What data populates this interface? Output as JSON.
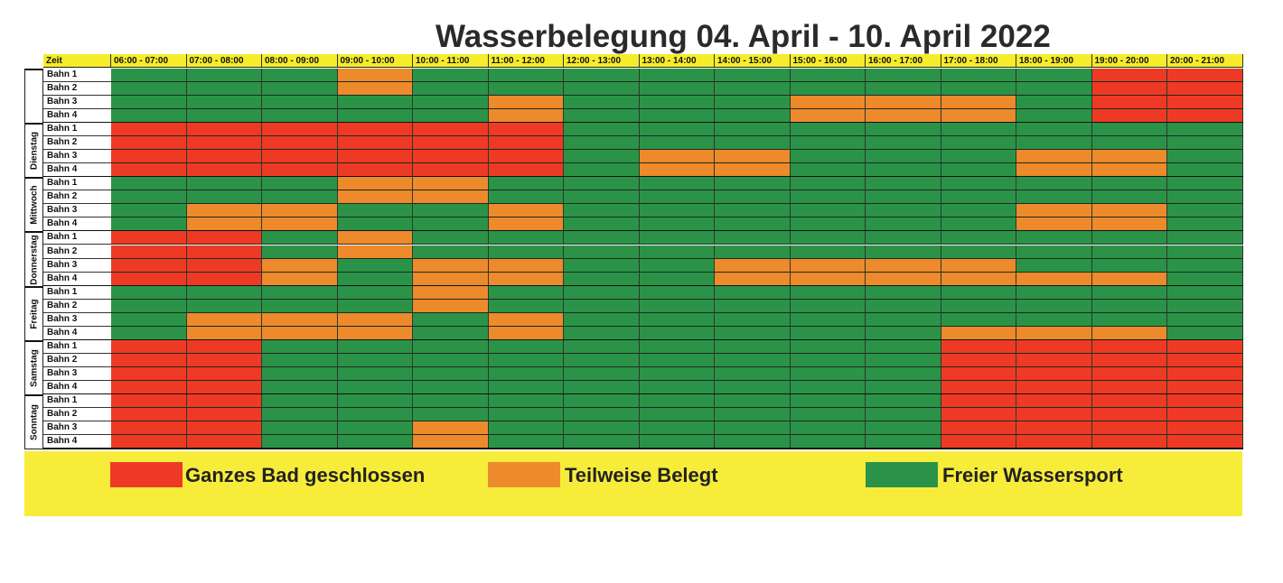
{
  "title": "Wasserbelegung 04. April - 10. April 2022",
  "header": {
    "corner_label": "Zeit",
    "time_slots": [
      "06:00 - 07:00",
      "07:00 - 08:00",
      "08:00 - 09:00",
      "09:00 - 10:00",
      "10:00 - 11:00",
      "11:00 - 12:00",
      "12:00 - 13:00",
      "13:00 - 14:00",
      "14:00 - 15:00",
      "15:00 - 16:00",
      "16:00 - 17:00",
      "17:00 - 18:00",
      "18:00 - 19:00",
      "19:00 - 20:00",
      "20:00 - 21:00"
    ]
  },
  "colors": {
    "R": "#ee3a24",
    "O": "#ec8a2c",
    "G": "#2b9348",
    "header_bg": "#f5ec2a",
    "legend_bg": "#f7ec3a"
  },
  "legend": [
    {
      "code": "R",
      "label": "Ganzes Bad geschlossen"
    },
    {
      "code": "O",
      "label": "Teilweise Belegt"
    },
    {
      "code": "G",
      "label": "Freier Wassersport"
    }
  ],
  "days": [
    {
      "label": "",
      "lanes": [
        {
          "name": "Bahn 1",
          "slots": "GGGOGGGGGGGGGRR"
        },
        {
          "name": "Bahn 2",
          "slots": "GGGOGGGGGGGGGRR"
        },
        {
          "name": "Bahn 3",
          "slots": "GGGGGOGGGOOOGRR"
        },
        {
          "name": "Bahn 4",
          "slots": "GGGGGOGGGOOOGRR"
        }
      ]
    },
    {
      "label": "Dienstag",
      "lanes": [
        {
          "name": "Bahn 1",
          "slots": "RRRRRRGGGGGGGGG"
        },
        {
          "name": "Bahn 2",
          "slots": "RRRRRRGGGGGGGGG"
        },
        {
          "name": "Bahn 3",
          "slots": "RRRRRRGOOGGGOOG"
        },
        {
          "name": "Bahn 4",
          "slots": "RRRRRRGOOGGGOOG"
        }
      ]
    },
    {
      "label": "Mittwoch",
      "lanes": [
        {
          "name": "Bahn 1",
          "slots": "GGGOOGGGGGGGGGG"
        },
        {
          "name": "Bahn 2",
          "slots": "GGGOOGGGGGGGGGG"
        },
        {
          "name": "Bahn 3",
          "slots": "GOOGGOGGGGGGOOG"
        },
        {
          "name": "Bahn 4",
          "slots": "GOOGGOGGGGGGOOG"
        }
      ]
    },
    {
      "label": "Donnerstag",
      "lanes": [
        {
          "name": "Bahn 1",
          "slots": "RRGOGGGGGGGGGGG"
        },
        {
          "name": "Bahn 2",
          "slots": "RRGOGGGGGGGGGGG"
        },
        {
          "name": "Bahn 3",
          "slots": "RROGOOGGOOOOGGG"
        },
        {
          "name": "Bahn 4",
          "slots": "RROGOOGGOOOOOOG"
        }
      ]
    },
    {
      "label": "Freitag",
      "lanes": [
        {
          "name": "Bahn 1",
          "slots": "GGGGOGGGGGGGGGG"
        },
        {
          "name": "Bahn 2",
          "slots": "GGGGOGGGGGGGGGG"
        },
        {
          "name": "Bahn 3",
          "slots": "GOOOGOGGGGGGGGG"
        },
        {
          "name": "Bahn 4",
          "slots": "GOOOGOGGGGGOOOG"
        }
      ]
    },
    {
      "label": "Samstag",
      "lanes": [
        {
          "name": "Bahn 1",
          "slots": "RRGGGGGGGGGRRRR"
        },
        {
          "name": "Bahn 2",
          "slots": "RRGGGGGGGGGRRRR"
        },
        {
          "name": "Bahn 3",
          "slots": "RRGGGGGGGGGRRRR"
        },
        {
          "name": "Bahn 4",
          "slots": "RRGGGGGGGGGRRRR"
        }
      ]
    },
    {
      "label": "Sonntag",
      "lanes": [
        {
          "name": "Bahn 1",
          "slots": "RRGGGGGGGGGRRRR"
        },
        {
          "name": "Bahn 2",
          "slots": "RRGGGGGGGGGRRRR"
        },
        {
          "name": "Bahn 3",
          "slots": "RRGGOGGGGGGRRRR"
        },
        {
          "name": "Bahn 4",
          "slots": "RRGGOGGGGGGRRRR"
        }
      ]
    }
  ]
}
